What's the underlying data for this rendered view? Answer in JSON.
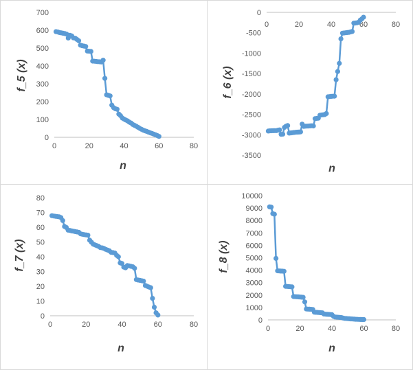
{
  "chart_data": [
    {
      "type": "line",
      "xlabel": "n",
      "ylabel": "f_5 (x)",
      "xlim": [
        0,
        80
      ],
      "ylim": [
        0,
        700
      ],
      "xticks": [
        0,
        20,
        40,
        60,
        80
      ],
      "yticks": [
        0,
        100,
        200,
        300,
        400,
        500,
        600,
        700
      ],
      "grid": false,
      "color": "#5b9bd5",
      "series": [
        {
          "x": [
            1,
            2,
            3,
            4,
            5,
            6,
            7,
            8,
            9,
            10,
            11,
            12,
            13,
            14,
            15,
            16,
            17,
            18,
            19,
            20,
            21,
            22,
            23,
            24,
            25,
            26,
            27,
            28,
            29,
            30,
            31,
            32,
            33,
            34,
            35,
            36,
            37,
            38,
            39,
            40,
            41,
            42,
            43,
            44,
            45,
            46,
            47,
            48,
            49,
            50,
            51,
            52,
            53,
            54,
            55,
            56,
            57,
            58,
            59,
            60
          ],
          "y": [
            592,
            590,
            587,
            585,
            583,
            581,
            578,
            556,
            572,
            568,
            557,
            555,
            548,
            541,
            516,
            513,
            511,
            509,
            483,
            482,
            481,
            427,
            426,
            425,
            424,
            423,
            422,
            432,
            330,
            238,
            235,
            232,
            180,
            166,
            160,
            157,
            130,
            121,
            108,
            102,
            97,
            92,
            85,
            80,
            72,
            67,
            62,
            56,
            50,
            45,
            40,
            36,
            33,
            29,
            25,
            22,
            18,
            14,
            10,
            5
          ]
        }
      ]
    },
    {
      "type": "line",
      "xlabel": "n",
      "ylabel": "f_6 (x)",
      "xlim": [
        0,
        80
      ],
      "ylim": [
        -3500,
        0
      ],
      "xticks": [
        0,
        20,
        40,
        60,
        80
      ],
      "yticks": [
        0,
        -500,
        -1000,
        -1500,
        -2000,
        -2500,
        -3000,
        -3500
      ],
      "xaxis_position": "top",
      "grid": false,
      "color": "#5b9bd5",
      "series": [
        {
          "x": [
            1,
            2,
            3,
            4,
            5,
            6,
            7,
            8,
            9,
            10,
            11,
            12,
            13,
            14,
            15,
            16,
            17,
            18,
            19,
            20,
            21,
            22,
            23,
            24,
            25,
            26,
            27,
            28,
            29,
            30,
            31,
            32,
            33,
            34,
            35,
            36,
            37,
            38,
            39,
            40,
            41,
            42,
            43,
            44,
            45,
            46,
            47,
            48,
            49,
            50,
            51,
            52,
            53,
            54,
            55,
            56,
            57,
            58,
            59,
            60
          ],
          "y": [
            -2910,
            -2905,
            -2903,
            -2901,
            -2900,
            -2899,
            -2890,
            -2880,
            -2990,
            -2985,
            -2820,
            -2790,
            -2775,
            -2960,
            -2955,
            -2950,
            -2945,
            -2940,
            -2937,
            -2935,
            -2930,
            -2740,
            -2795,
            -2790,
            -2788,
            -2786,
            -2784,
            -2780,
            -2785,
            -2605,
            -2600,
            -2595,
            -2520,
            -2515,
            -2510,
            -2505,
            -2480,
            -2070,
            -2065,
            -2060,
            -2057,
            -2055,
            -1650,
            -1450,
            -1250,
            -650,
            -510,
            -505,
            -500,
            -495,
            -490,
            -480,
            -470,
            -265,
            -260,
            -255,
            -240,
            -190,
            -160,
            -120
          ]
        }
      ]
    },
    {
      "type": "line",
      "xlabel": "n",
      "ylabel": "f_7 (x)",
      "xlim": [
        0,
        80
      ],
      "ylim": [
        0,
        80
      ],
      "xticks": [
        0,
        20,
        40,
        60,
        80
      ],
      "yticks": [
        0,
        10,
        20,
        30,
        40,
        50,
        60,
        70,
        80
      ],
      "grid": false,
      "color": "#5b9bd5",
      "series": [
        {
          "x": [
            1,
            2,
            3,
            4,
            5,
            6,
            7,
            8,
            9,
            10,
            11,
            12,
            13,
            14,
            15,
            16,
            17,
            18,
            19,
            20,
            21,
            22,
            23,
            24,
            25,
            26,
            27,
            28,
            29,
            30,
            31,
            32,
            33,
            34,
            35,
            36,
            37,
            38,
            39,
            40,
            41,
            42,
            43,
            44,
            45,
            46,
            47,
            48,
            49,
            50,
            51,
            52,
            53,
            54,
            55,
            56,
            57,
            58,
            59,
            60
          ],
          "y": [
            67.8,
            67.6,
            67.4,
            67.2,
            67.0,
            66.5,
            64.5,
            60.5,
            59.8,
            58.0,
            57.8,
            57.5,
            57.3,
            57.0,
            56.8,
            56.5,
            55.5,
            55.2,
            55.0,
            54.8,
            54.6,
            51.2,
            49.8,
            48.5,
            48.0,
            47.5,
            47.0,
            46.2,
            46.0,
            45.6,
            45.0,
            44.5,
            44.0,
            43.0,
            42.8,
            42.5,
            41.0,
            40.0,
            35.8,
            35.4,
            33.0,
            32.5,
            34.0,
            33.8,
            33.5,
            33.2,
            32.2,
            24.5,
            24.2,
            24.0,
            23.7,
            23.5,
            20.5,
            20.0,
            19.5,
            19.0,
            11.8,
            5.8,
            2.0,
            0.5
          ]
        }
      ]
    },
    {
      "type": "line",
      "xlabel": "n",
      "ylabel": "f_8 (x)",
      "xlim": [
        0,
        80
      ],
      "ylim": [
        0,
        10000
      ],
      "xticks": [
        0,
        20,
        40,
        60,
        80
      ],
      "yticks": [
        0,
        1000,
        2000,
        3000,
        4000,
        5000,
        6000,
        7000,
        8000,
        9000,
        10000
      ],
      "grid": false,
      "color": "#5b9bd5",
      "series": [
        {
          "x": [
            1,
            2,
            3,
            4,
            5,
            6,
            7,
            8,
            9,
            10,
            11,
            12,
            13,
            14,
            15,
            16,
            17,
            18,
            19,
            20,
            21,
            22,
            23,
            24,
            25,
            26,
            27,
            28,
            29,
            30,
            31,
            32,
            33,
            34,
            35,
            36,
            37,
            38,
            39,
            40,
            41,
            42,
            43,
            44,
            45,
            46,
            47,
            48,
            49,
            50,
            51,
            52,
            53,
            54,
            55,
            56,
            57,
            58,
            59,
            60
          ],
          "y": [
            9100,
            9080,
            8550,
            8500,
            4950,
            3950,
            3940,
            3930,
            3920,
            3910,
            2700,
            2690,
            2680,
            2670,
            2660,
            1880,
            1870,
            1860,
            1850,
            1840,
            1830,
            1820,
            1450,
            880,
            870,
            860,
            850,
            840,
            620,
            610,
            600,
            590,
            580,
            570,
            470,
            460,
            450,
            440,
            430,
            420,
            290,
            230,
            220,
            210,
            200,
            190,
            150,
            120,
            110,
            100,
            90,
            80,
            70,
            60,
            50,
            45,
            40,
            35,
            30,
            25
          ]
        }
      ]
    }
  ]
}
